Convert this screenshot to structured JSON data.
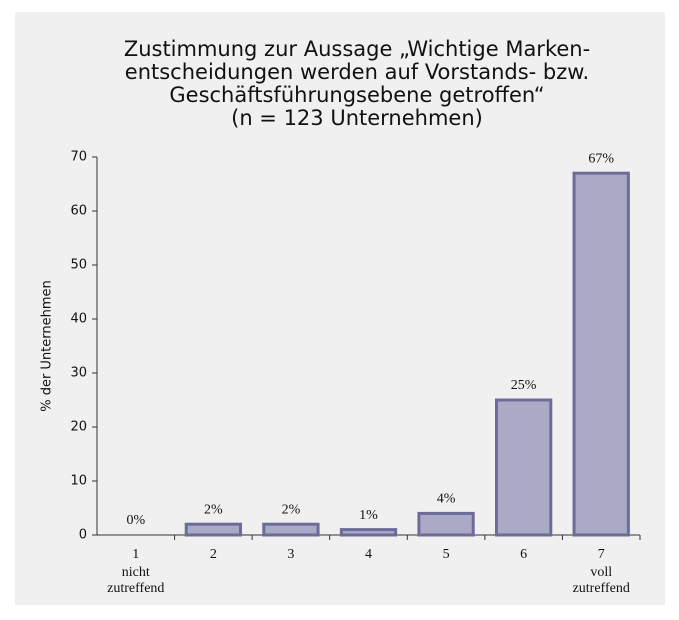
{
  "chart_data": {
    "type": "bar",
    "title": [
      "Zustimmung zur Aussage „Wichtige Marken-",
      "entscheidungen werden auf Vorstands- bzw.",
      "Geschäftsführungsebene getroffen“",
      "(n = 123 Unternehmen)"
    ],
    "ylabel": "% der Unternehmen",
    "categories": [
      "1",
      "2",
      "3",
      "4",
      "5",
      "6",
      "7"
    ],
    "first_category_note": [
      "nicht",
      "zutreffend"
    ],
    "last_category_note": [
      "voll",
      "zutreffend"
    ],
    "values": [
      0,
      2,
      2,
      1,
      4,
      25,
      67
    ],
    "value_labels": [
      "0%",
      "2%",
      "2%",
      "1%",
      "4%",
      "25%",
      "67%"
    ],
    "color": "#aaa9c6",
    "ylim": [
      0,
      70
    ],
    "yticks": [
      0,
      10,
      20,
      30,
      40,
      50,
      60,
      70
    ]
  }
}
